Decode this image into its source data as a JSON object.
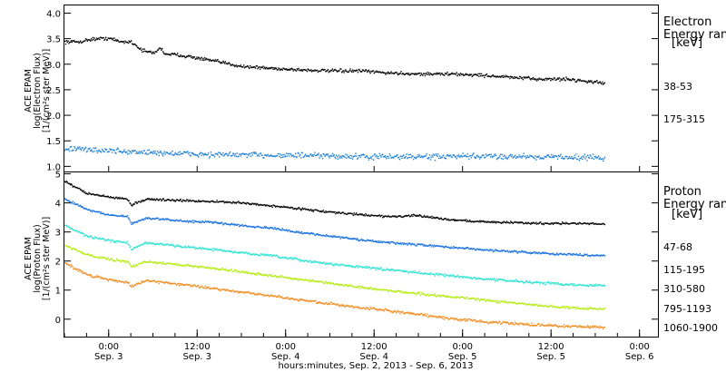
{
  "chart_data": {
    "type": "scatter",
    "xlabel": "hours:minutes, Sep.  2, 2013 - Sep.  6, 2013",
    "x_ticks": [
      {
        "hours": 6,
        "time": "0:00",
        "date": "Sep. 3"
      },
      {
        "hours": 18,
        "time": "12:00",
        "date": "Sep. 3"
      },
      {
        "hours": 30,
        "time": "0:00",
        "date": "Sep. 4"
      },
      {
        "hours": 42,
        "time": "12:00",
        "date": "Sep. 4"
      },
      {
        "hours": 54,
        "time": "0:00",
        "date": "Sep. 5"
      },
      {
        "hours": 66,
        "time": "12:00",
        "date": "Sep. 5"
      },
      {
        "hours": 78,
        "time": "0:00",
        "date": "Sep. 6"
      }
    ],
    "xlim_hours": [
      0,
      80.5
    ],
    "data_end_hours": 73.2,
    "panels": [
      {
        "id": "electron",
        "ylabel": [
          "ACE EPAM",
          "log(Electron Flux)",
          "[1/(cm²s ster MeV)]"
        ],
        "ylim": [
          0.9,
          4.15
        ],
        "yticks": [
          "1.0",
          "1.5",
          "2.0",
          "2.5",
          "3.0",
          "3.5",
          "4.0"
        ],
        "legend_title": [
          "Electron",
          "Energy ran",
          "[keV]"
        ],
        "series": [
          {
            "name": "38-53",
            "color": "#000000",
            "scatter": 0.035,
            "points": [
              [
                0,
                3.45
              ],
              [
                2,
                3.45
              ],
              [
                3.5,
                3.5
              ],
              [
                6,
                3.52
              ],
              [
                7.5,
                3.45
              ],
              [
                9,
                3.45
              ],
              [
                10.5,
                3.28
              ],
              [
                12,
                3.23
              ],
              [
                13,
                3.33
              ],
              [
                13.5,
                3.22
              ],
              [
                16,
                3.18
              ],
              [
                20,
                3.08
              ],
              [
                24,
                2.97
              ],
              [
                28,
                2.93
              ],
              [
                32,
                2.9
              ],
              [
                36,
                2.88
              ],
              [
                40,
                2.88
              ],
              [
                44,
                2.84
              ],
              [
                48,
                2.82
              ],
              [
                52,
                2.82
              ],
              [
                56,
                2.8
              ],
              [
                60,
                2.76
              ],
              [
                64,
                2.72
              ],
              [
                68,
                2.72
              ],
              [
                72,
                2.66
              ],
              [
                73.2,
                2.64
              ]
            ]
          },
          {
            "name": "175-315",
            "color": "#1E7FD6",
            "scatter": 0.06,
            "points": [
              [
                0,
                1.36
              ],
              [
                10,
                1.29
              ],
              [
                20,
                1.24
              ],
              [
                30,
                1.23
              ],
              [
                40,
                1.2
              ],
              [
                50,
                1.2
              ],
              [
                60,
                1.21
              ],
              [
                70,
                1.19
              ],
              [
                73.2,
                1.18
              ]
            ]
          }
        ]
      },
      {
        "id": "proton",
        "ylabel": [
          "ACE EPAM",
          "log(Proton Flux)",
          "[1/(cm²s ster MeV)]"
        ],
        "ylim": [
          -0.6,
          5.05
        ],
        "yticks": [
          "0",
          "1",
          "2",
          "3",
          "4",
          "5"
        ],
        "legend_title": [
          "Proton",
          "Energy ran",
          "[keV]"
        ],
        "series": [
          {
            "name": "47-68",
            "color": "#000000",
            "scatter": 0.04,
            "points": [
              [
                0,
                4.75
              ],
              [
                3,
                4.35
              ],
              [
                6,
                4.22
              ],
              [
                8.5,
                4.15
              ],
              [
                9,
                3.95
              ],
              [
                11,
                4.15
              ],
              [
                16,
                4.1
              ],
              [
                20,
                4.07
              ],
              [
                24,
                4.02
              ],
              [
                28,
                3.92
              ],
              [
                32,
                3.82
              ],
              [
                36,
                3.7
              ],
              [
                40,
                3.62
              ],
              [
                44,
                3.55
              ],
              [
                48,
                3.58
              ],
              [
                52,
                3.45
              ],
              [
                56,
                3.38
              ],
              [
                60,
                3.35
              ],
              [
                64,
                3.32
              ],
              [
                68,
                3.32
              ],
              [
                72,
                3.3
              ],
              [
                73.2,
                3.3
              ]
            ]
          },
          {
            "name": "115-195",
            "color": "#1770E0",
            "scatter": 0.04,
            "points": [
              [
                0,
                4.15
              ],
              [
                3,
                3.8
              ],
              [
                6,
                3.6
              ],
              [
                8.5,
                3.55
              ],
              [
                9,
                3.3
              ],
              [
                11,
                3.5
              ],
              [
                16,
                3.4
              ],
              [
                20,
                3.35
              ],
              [
                24,
                3.25
              ],
              [
                28,
                3.15
              ],
              [
                32,
                3.0
              ],
              [
                36,
                2.88
              ],
              [
                40,
                2.75
              ],
              [
                44,
                2.65
              ],
              [
                48,
                2.58
              ],
              [
                52,
                2.5
              ],
              [
                56,
                2.42
              ],
              [
                60,
                2.36
              ],
              [
                64,
                2.3
              ],
              [
                68,
                2.25
              ],
              [
                72,
                2.22
              ],
              [
                73.2,
                2.22
              ]
            ]
          },
          {
            "name": "310-580",
            "color": "#2BE3D2",
            "scatter": 0.045,
            "points": [
              [
                0,
                3.25
              ],
              [
                3,
                2.88
              ],
              [
                6,
                2.72
              ],
              [
                8.5,
                2.65
              ],
              [
                9,
                2.42
              ],
              [
                11,
                2.65
              ],
              [
                16,
                2.52
              ],
              [
                20,
                2.42
              ],
              [
                24,
                2.3
              ],
              [
                28,
                2.2
              ],
              [
                32,
                2.05
              ],
              [
                36,
                1.92
              ],
              [
                40,
                1.82
              ],
              [
                44,
                1.72
              ],
              [
                48,
                1.62
              ],
              [
                52,
                1.52
              ],
              [
                56,
                1.42
              ],
              [
                60,
                1.35
              ],
              [
                64,
                1.28
              ],
              [
                68,
                1.22
              ],
              [
                72,
                1.18
              ],
              [
                73.2,
                1.18
              ]
            ]
          },
          {
            "name": "795-1193",
            "color": "#B5EB12",
            "scatter": 0.045,
            "points": [
              [
                0,
                2.55
              ],
              [
                3,
                2.25
              ],
              [
                6,
                2.08
              ],
              [
                8.5,
                2.0
              ],
              [
                9,
                1.82
              ],
              [
                11,
                2.0
              ],
              [
                16,
                1.88
              ],
              [
                20,
                1.78
              ],
              [
                24,
                1.65
              ],
              [
                28,
                1.52
              ],
              [
                32,
                1.38
              ],
              [
                36,
                1.25
              ],
              [
                40,
                1.12
              ],
              [
                44,
                1.0
              ],
              [
                48,
                0.9
              ],
              [
                52,
                0.8
              ],
              [
                56,
                0.7
              ],
              [
                60,
                0.6
              ],
              [
                64,
                0.5
              ],
              [
                68,
                0.42
              ],
              [
                72,
                0.38
              ],
              [
                73.2,
                0.38
              ]
            ]
          },
          {
            "name": "1060-1900",
            "color": "#F28B1D",
            "scatter": 0.05,
            "points": [
              [
                0,
                1.95
              ],
              [
                3,
                1.55
              ],
              [
                6,
                1.38
              ],
              [
                8.5,
                1.28
              ],
              [
                9,
                1.15
              ],
              [
                11,
                1.35
              ],
              [
                16,
                1.22
              ],
              [
                20,
                1.08
              ],
              [
                24,
                0.95
              ],
              [
                28,
                0.82
              ],
              [
                32,
                0.68
              ],
              [
                36,
                0.55
              ],
              [
                40,
                0.42
              ],
              [
                44,
                0.3
              ],
              [
                48,
                0.18
              ],
              [
                52,
                0.05
              ],
              [
                56,
                -0.05
              ],
              [
                60,
                -0.12
              ],
              [
                64,
                -0.18
              ],
              [
                68,
                -0.22
              ],
              [
                72,
                -0.25
              ],
              [
                73.2,
                -0.26
              ]
            ]
          }
        ]
      }
    ]
  }
}
